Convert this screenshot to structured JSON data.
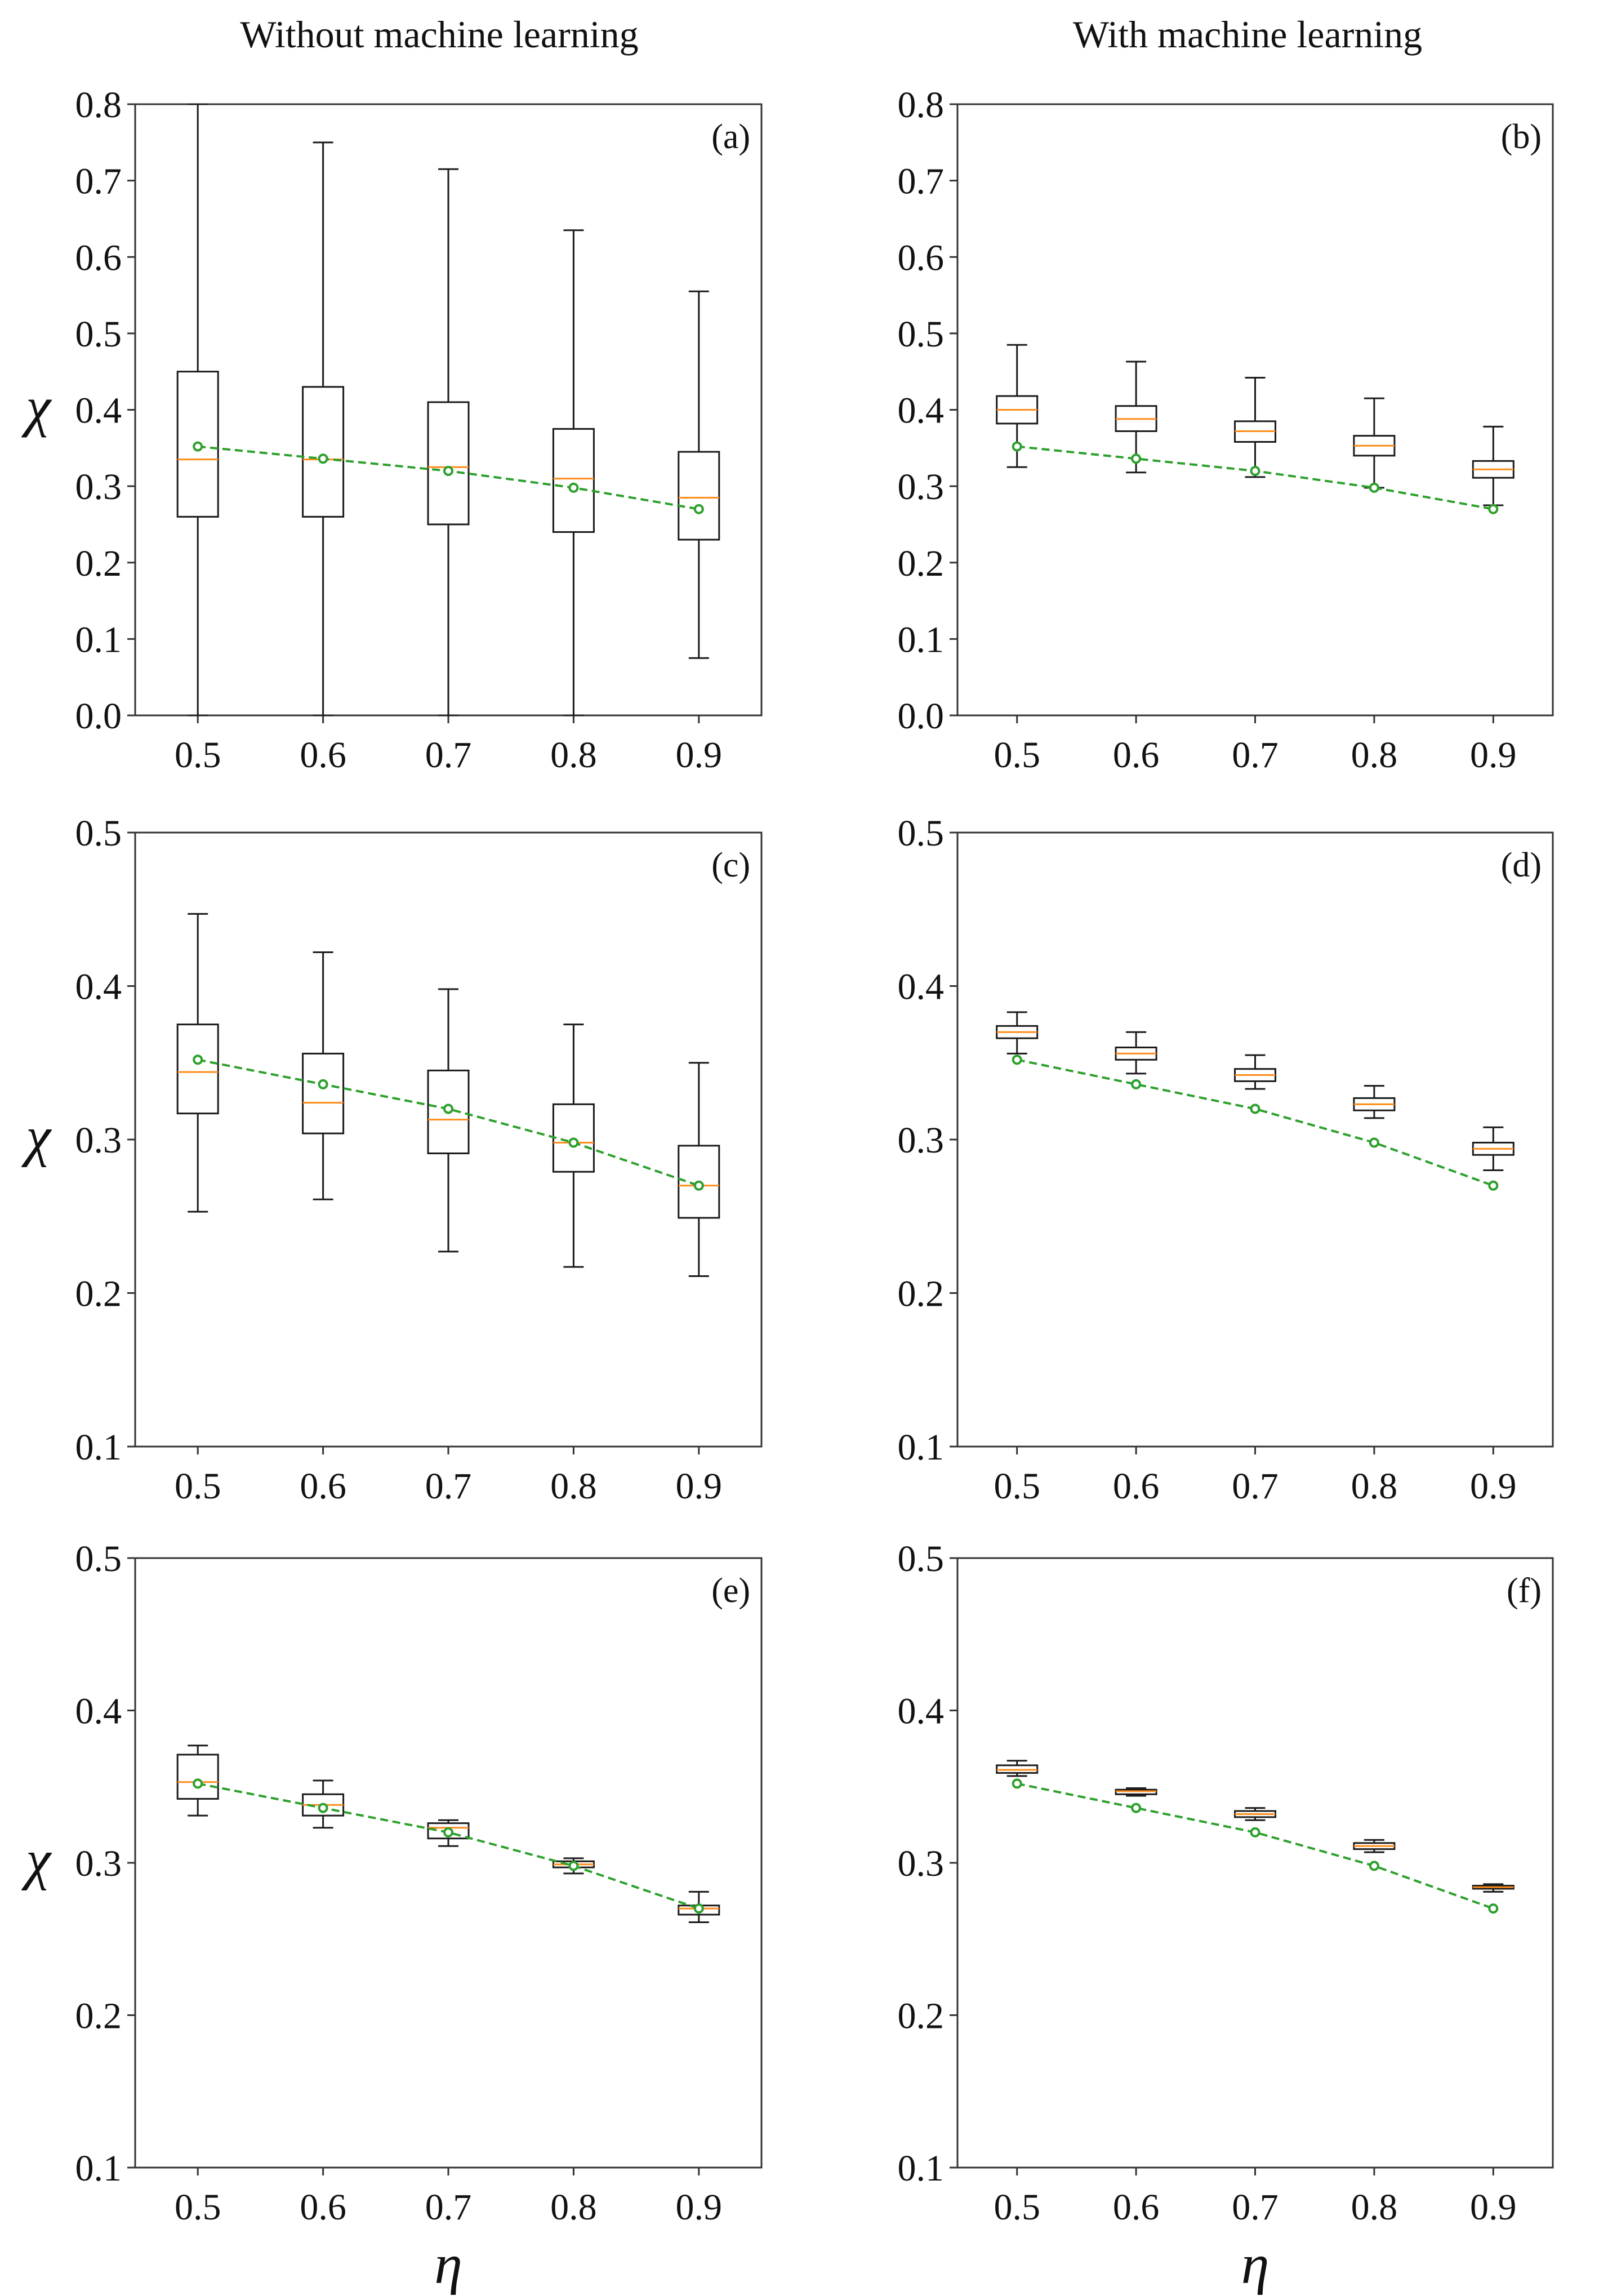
{
  "column_titles": {
    "left": "Without machine learning",
    "right": "With machine learning"
  },
  "colors": {
    "box": "#1a1a1a",
    "median": "#ff8c1a",
    "reference": "#2ca02c",
    "frame": "#333333"
  },
  "chart_data": [
    {
      "panel": "(a)",
      "type": "box",
      "column": "Without machine learning",
      "xlabel": "",
      "ylabel": "χ",
      "categories": [
        "0.5",
        "0.6",
        "0.7",
        "0.8",
        "0.9"
      ],
      "ylim": [
        0.0,
        0.8
      ],
      "yticks": [
        0.0,
        0.1,
        0.2,
        0.3,
        0.4,
        0.5,
        0.6,
        0.7,
        0.8
      ],
      "ytick_labels": [
        "0.0",
        "0.1",
        "0.2",
        "0.3",
        "0.4",
        "0.5",
        "0.6",
        "0.7",
        "0.8"
      ],
      "boxes": [
        {
          "min": 0.0,
          "q1": 0.26,
          "median": 0.335,
          "q3": 0.45,
          "max": 0.8
        },
        {
          "min": 0.0,
          "q1": 0.26,
          "median": 0.335,
          "q3": 0.43,
          "max": 0.75
        },
        {
          "min": 0.0,
          "q1": 0.25,
          "median": 0.325,
          "q3": 0.41,
          "max": 0.715
        },
        {
          "min": 0.0,
          "q1": 0.24,
          "median": 0.31,
          "q3": 0.375,
          "max": 0.635
        },
        {
          "min": 0.075,
          "q1": 0.23,
          "median": 0.285,
          "q3": 0.345,
          "max": 0.555
        }
      ],
      "reference": [
        0.352,
        0.336,
        0.32,
        0.298,
        0.27
      ]
    },
    {
      "panel": "(b)",
      "type": "box",
      "column": "With machine learning",
      "xlabel": "",
      "ylabel": "",
      "categories": [
        "0.5",
        "0.6",
        "0.7",
        "0.8",
        "0.9"
      ],
      "ylim": [
        0.0,
        0.8
      ],
      "yticks": [
        0.0,
        0.1,
        0.2,
        0.3,
        0.4,
        0.5,
        0.6,
        0.7,
        0.8
      ],
      "ytick_labels": [
        "0.0",
        "0.1",
        "0.2",
        "0.3",
        "0.4",
        "0.5",
        "0.6",
        "0.7",
        "0.8"
      ],
      "boxes": [
        {
          "min": 0.325,
          "q1": 0.382,
          "median": 0.4,
          "q3": 0.418,
          "max": 0.485
        },
        {
          "min": 0.318,
          "q1": 0.372,
          "median": 0.388,
          "q3": 0.405,
          "max": 0.463
        },
        {
          "min": 0.312,
          "q1": 0.358,
          "median": 0.372,
          "q3": 0.385,
          "max": 0.442
        },
        {
          "min": 0.298,
          "q1": 0.34,
          "median": 0.353,
          "q3": 0.366,
          "max": 0.415
        },
        {
          "min": 0.275,
          "q1": 0.311,
          "median": 0.322,
          "q3": 0.333,
          "max": 0.378
        }
      ],
      "reference": [
        0.352,
        0.336,
        0.32,
        0.298,
        0.27
      ]
    },
    {
      "panel": "(c)",
      "type": "box",
      "column": "Without machine learning",
      "xlabel": "",
      "ylabel": "χ",
      "categories": [
        "0.5",
        "0.6",
        "0.7",
        "0.8",
        "0.9"
      ],
      "ylim": [
        0.1,
        0.5
      ],
      "yticks": [
        0.1,
        0.2,
        0.3,
        0.4,
        0.5
      ],
      "ytick_labels": [
        "0.1",
        "0.2",
        "0.3",
        "0.4",
        "0.5"
      ],
      "boxes": [
        {
          "min": 0.253,
          "q1": 0.317,
          "median": 0.344,
          "q3": 0.375,
          "max": 0.447
        },
        {
          "min": 0.261,
          "q1": 0.304,
          "median": 0.324,
          "q3": 0.356,
          "max": 0.422
        },
        {
          "min": 0.227,
          "q1": 0.291,
          "median": 0.313,
          "q3": 0.345,
          "max": 0.398
        },
        {
          "min": 0.217,
          "q1": 0.279,
          "median": 0.298,
          "q3": 0.323,
          "max": 0.375
        },
        {
          "min": 0.211,
          "q1": 0.249,
          "median": 0.27,
          "q3": 0.296,
          "max": 0.35
        }
      ],
      "reference": [
        0.352,
        0.336,
        0.32,
        0.298,
        0.27
      ]
    },
    {
      "panel": "(d)",
      "type": "box",
      "column": "With machine learning",
      "xlabel": "",
      "ylabel": "",
      "categories": [
        "0.5",
        "0.6",
        "0.7",
        "0.8",
        "0.9"
      ],
      "ylim": [
        0.1,
        0.5
      ],
      "yticks": [
        0.1,
        0.2,
        0.3,
        0.4,
        0.5
      ],
      "ytick_labels": [
        "0.1",
        "0.2",
        "0.3",
        "0.4",
        "0.5"
      ],
      "boxes": [
        {
          "min": 0.356,
          "q1": 0.366,
          "median": 0.37,
          "q3": 0.374,
          "max": 0.383
        },
        {
          "min": 0.343,
          "q1": 0.352,
          "median": 0.356,
          "q3": 0.36,
          "max": 0.37
        },
        {
          "min": 0.333,
          "q1": 0.338,
          "median": 0.342,
          "q3": 0.346,
          "max": 0.355
        },
        {
          "min": 0.314,
          "q1": 0.319,
          "median": 0.323,
          "q3": 0.327,
          "max": 0.335
        },
        {
          "min": 0.28,
          "q1": 0.29,
          "median": 0.294,
          "q3": 0.298,
          "max": 0.308
        }
      ],
      "reference": [
        0.352,
        0.336,
        0.32,
        0.298,
        0.27
      ]
    },
    {
      "panel": "(e)",
      "type": "box",
      "column": "Without machine learning",
      "xlabel": "η",
      "ylabel": "χ",
      "categories": [
        "0.5",
        "0.6",
        "0.7",
        "0.8",
        "0.9"
      ],
      "ylim": [
        0.1,
        0.5
      ],
      "yticks": [
        0.1,
        0.2,
        0.3,
        0.4,
        0.5
      ],
      "ytick_labels": [
        "0.1",
        "0.2",
        "0.3",
        "0.4",
        "0.5"
      ],
      "boxes": [
        {
          "min": 0.331,
          "q1": 0.342,
          "median": 0.353,
          "q3": 0.371,
          "max": 0.377
        },
        {
          "min": 0.323,
          "q1": 0.331,
          "median": 0.338,
          "q3": 0.345,
          "max": 0.354
        },
        {
          "min": 0.311,
          "q1": 0.316,
          "median": 0.323,
          "q3": 0.326,
          "max": 0.328
        },
        {
          "min": 0.293,
          "q1": 0.297,
          "median": 0.299,
          "q3": 0.301,
          "max": 0.303
        },
        {
          "min": 0.261,
          "q1": 0.266,
          "median": 0.27,
          "q3": 0.272,
          "max": 0.281
        }
      ],
      "reference": [
        0.352,
        0.336,
        0.32,
        0.298,
        0.27
      ]
    },
    {
      "panel": "(f)",
      "type": "box",
      "column": "With machine learning",
      "xlabel": "η",
      "ylabel": "",
      "categories": [
        "0.5",
        "0.6",
        "0.7",
        "0.8",
        "0.9"
      ],
      "ylim": [
        0.1,
        0.5
      ],
      "yticks": [
        0.1,
        0.2,
        0.3,
        0.4,
        0.5
      ],
      "ytick_labels": [
        "0.1",
        "0.2",
        "0.3",
        "0.4",
        "0.5"
      ],
      "boxes": [
        {
          "min": 0.357,
          "q1": 0.359,
          "median": 0.361,
          "q3": 0.364,
          "max": 0.367
        },
        {
          "min": 0.344,
          "q1": 0.345,
          "median": 0.347,
          "q3": 0.348,
          "max": 0.349
        },
        {
          "min": 0.328,
          "q1": 0.33,
          "median": 0.332,
          "q3": 0.334,
          "max": 0.336
        },
        {
          "min": 0.307,
          "q1": 0.309,
          "median": 0.311,
          "q3": 0.313,
          "max": 0.315
        },
        {
          "min": 0.281,
          "q1": 0.283,
          "median": 0.284,
          "q3": 0.285,
          "max": 0.286
        }
      ],
      "reference": [
        0.352,
        0.336,
        0.32,
        0.298,
        0.27
      ]
    }
  ]
}
